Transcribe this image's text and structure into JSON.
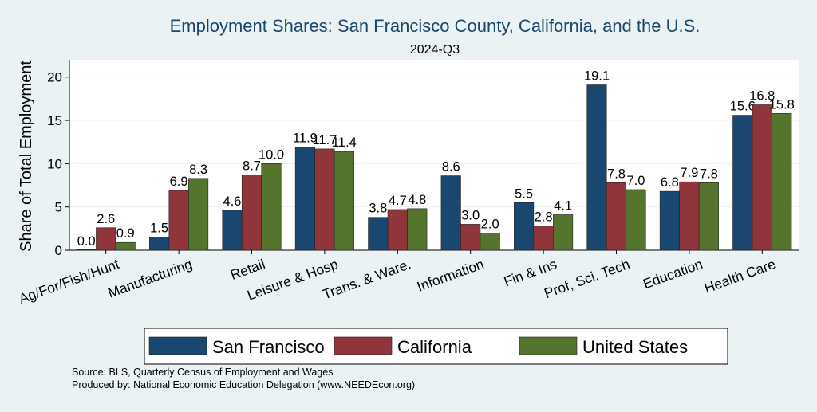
{
  "chart_data": {
    "type": "bar",
    "title": "Employment Shares: San Francisco County, California, and the U.S.",
    "subtitle": "2024-Q3",
    "ylabel": "Share of Total Employment",
    "xlabel": "",
    "ylim": [
      0,
      22
    ],
    "yticks": [
      0,
      5,
      10,
      15,
      20
    ],
    "categories": [
      "Ag/For/Fish/Hunt",
      "Manufacturing",
      "Retail",
      "Leisure & Hosp",
      "Trans. & Ware.",
      "Information",
      "Fin & Ins",
      "Prof, Sci, Tech",
      "Education",
      "Health Care"
    ],
    "series": [
      {
        "name": "San Francisco",
        "color": "#1a476f",
        "values": [
          0.0,
          1.5,
          4.6,
          11.9,
          3.8,
          8.6,
          5.5,
          19.1,
          6.8,
          15.6
        ],
        "labels": [
          "0.0",
          "1.5",
          "4.6",
          "11.9",
          "3.8",
          "8.6",
          "5.5",
          "19.1",
          "6.8",
          "15.6"
        ]
      },
      {
        "name": "California",
        "color": "#90353b",
        "values": [
          2.6,
          6.9,
          8.7,
          11.7,
          4.7,
          3.0,
          2.8,
          7.8,
          7.9,
          16.8
        ],
        "labels": [
          "2.6",
          "6.9",
          "8.7",
          "11.7",
          "4.7",
          "3.0",
          "2.8",
          "7.8",
          "7.9",
          "16.8"
        ]
      },
      {
        "name": "United States",
        "color": "#55752f",
        "values": [
          0.9,
          8.3,
          10.0,
          11.4,
          4.8,
          2.0,
          4.1,
          7.0,
          7.8,
          15.8
        ],
        "labels": [
          "0.9",
          "8.3",
          "10.0",
          "11.4",
          "4.8",
          "2.0",
          "4.1",
          "7.0",
          "7.8",
          "15.8"
        ]
      }
    ],
    "legend_position": "bottom",
    "grid": true
  },
  "notes": {
    "source": "Source: BLS, Quarterly Census of Employment and Wages",
    "produced_by": "Produced by: National Economic Education Delegation (www.NEEDEcon.org)"
  },
  "colors": {
    "background": "#eaf2f3",
    "plot_background": "#ffffff",
    "title": "#1a476f",
    "gridline": "#eaf2f3"
  }
}
